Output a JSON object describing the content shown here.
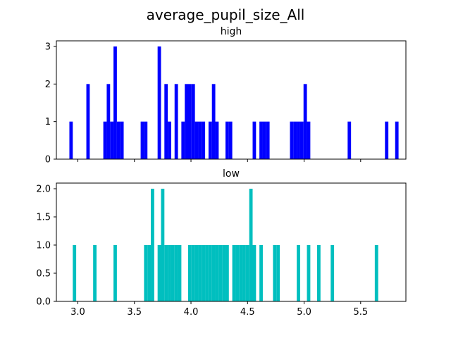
{
  "chart_data": {
    "type": "histogram",
    "title": "average_pupil_size_All",
    "subplots": [
      {
        "title": "high",
        "color": "#0000ff",
        "xlim": [
          2.81,
          5.9
        ],
        "ylim": [
          0,
          3.15
        ],
        "yticks": [
          0,
          1,
          2,
          3
        ],
        "ytick_labels": [
          "0",
          "1",
          "2",
          "3"
        ],
        "bars": [
          {
            "x": 2.94,
            "y": 1
          },
          {
            "x": 3.09,
            "y": 2
          },
          {
            "x": 3.24,
            "y": 1
          },
          {
            "x": 3.27,
            "y": 2
          },
          {
            "x": 3.3,
            "y": 1
          },
          {
            "x": 3.33,
            "y": 3
          },
          {
            "x": 3.36,
            "y": 1
          },
          {
            "x": 3.39,
            "y": 1
          },
          {
            "x": 3.57,
            "y": 1
          },
          {
            "x": 3.6,
            "y": 1
          },
          {
            "x": 3.72,
            "y": 3
          },
          {
            "x": 3.78,
            "y": 2
          },
          {
            "x": 3.81,
            "y": 1
          },
          {
            "x": 3.87,
            "y": 2
          },
          {
            "x": 3.93,
            "y": 1
          },
          {
            "x": 3.96,
            "y": 2
          },
          {
            "x": 3.99,
            "y": 2
          },
          {
            "x": 4.02,
            "y": 2
          },
          {
            "x": 4.05,
            "y": 1
          },
          {
            "x": 4.08,
            "y": 1
          },
          {
            "x": 4.11,
            "y": 1
          },
          {
            "x": 4.17,
            "y": 1
          },
          {
            "x": 4.2,
            "y": 2
          },
          {
            "x": 4.23,
            "y": 1
          },
          {
            "x": 4.32,
            "y": 1
          },
          {
            "x": 4.35,
            "y": 1
          },
          {
            "x": 4.56,
            "y": 1
          },
          {
            "x": 4.62,
            "y": 1
          },
          {
            "x": 4.65,
            "y": 1
          },
          {
            "x": 4.68,
            "y": 1
          },
          {
            "x": 4.89,
            "y": 1
          },
          {
            "x": 4.92,
            "y": 1
          },
          {
            "x": 4.95,
            "y": 1
          },
          {
            "x": 4.98,
            "y": 1
          },
          {
            "x": 5.01,
            "y": 2
          },
          {
            "x": 5.04,
            "y": 1
          },
          {
            "x": 5.4,
            "y": 1
          },
          {
            "x": 5.73,
            "y": 1
          },
          {
            "x": 5.82,
            "y": 1
          }
        ]
      },
      {
        "title": "low",
        "color": "#00bfbf",
        "xlim": [
          2.81,
          5.9
        ],
        "ylim": [
          0,
          2.1
        ],
        "yticks": [
          0,
          0.5,
          1.0,
          1.5,
          2.0
        ],
        "ytick_labels": [
          "0.0",
          "0.5",
          "1.0",
          "1.5",
          "2.0"
        ],
        "xticks": [
          3.0,
          3.5,
          4.0,
          4.5,
          5.0,
          5.5
        ],
        "xtick_labels": [
          "3.0",
          "3.5",
          "4.0",
          "4.5",
          "5.0",
          "5.5"
        ],
        "bars": [
          {
            "x": 2.97,
            "y": 1
          },
          {
            "x": 3.15,
            "y": 1
          },
          {
            "x": 3.33,
            "y": 1
          },
          {
            "x": 3.6,
            "y": 1
          },
          {
            "x": 3.63,
            "y": 1
          },
          {
            "x": 3.66,
            "y": 2
          },
          {
            "x": 3.72,
            "y": 1
          },
          {
            "x": 3.75,
            "y": 2
          },
          {
            "x": 3.78,
            "y": 1
          },
          {
            "x": 3.81,
            "y": 1
          },
          {
            "x": 3.84,
            "y": 1
          },
          {
            "x": 3.87,
            "y": 1
          },
          {
            "x": 3.9,
            "y": 1
          },
          {
            "x": 3.99,
            "y": 1
          },
          {
            "x": 4.02,
            "y": 1
          },
          {
            "x": 4.05,
            "y": 1
          },
          {
            "x": 4.08,
            "y": 1
          },
          {
            "x": 4.11,
            "y": 1
          },
          {
            "x": 4.14,
            "y": 1
          },
          {
            "x": 4.17,
            "y": 1
          },
          {
            "x": 4.2,
            "y": 1
          },
          {
            "x": 4.23,
            "y": 1
          },
          {
            "x": 4.26,
            "y": 1
          },
          {
            "x": 4.29,
            "y": 1
          },
          {
            "x": 4.32,
            "y": 1
          },
          {
            "x": 4.38,
            "y": 1
          },
          {
            "x": 4.41,
            "y": 1
          },
          {
            "x": 4.44,
            "y": 1
          },
          {
            "x": 4.47,
            "y": 1
          },
          {
            "x": 4.5,
            "y": 1
          },
          {
            "x": 4.53,
            "y": 2
          },
          {
            "x": 4.56,
            "y": 1
          },
          {
            "x": 4.62,
            "y": 1
          },
          {
            "x": 4.74,
            "y": 1
          },
          {
            "x": 4.77,
            "y": 1
          },
          {
            "x": 4.95,
            "y": 1
          },
          {
            "x": 5.04,
            "y": 1
          },
          {
            "x": 5.13,
            "y": 1
          },
          {
            "x": 5.25,
            "y": 1
          },
          {
            "x": 5.64,
            "y": 1
          }
        ]
      }
    ]
  }
}
